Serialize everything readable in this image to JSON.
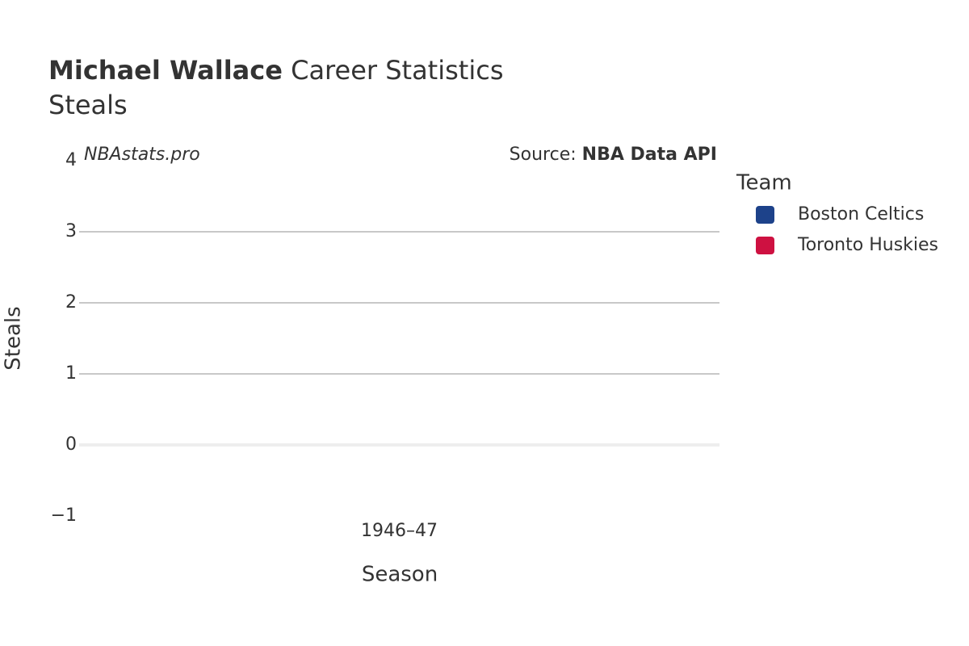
{
  "chart_data": {
    "type": "bar",
    "title_bold": "Michael Wallace",
    "title": "Career Statistics",
    "subtitle": "Steals",
    "watermark": "NBAstats.pro",
    "source_label": "Source:",
    "source": "NBA Data API",
    "x_label": "Season",
    "y_label": "Steals",
    "categories": [
      "1946–47"
    ],
    "legend_title": "Team",
    "series": [
      {
        "name": "Boston Celtics",
        "color": "#1d428a",
        "values": [
          0
        ]
      },
      {
        "name": "Toronto Huskies",
        "color": "#ce1141",
        "values": [
          0
        ]
      }
    ],
    "ylim": [
      -1,
      4
    ],
    "yticks": [
      {
        "value": -1,
        "label": "−1"
      },
      0,
      1,
      2,
      3,
      4
    ],
    "grid": true
  }
}
